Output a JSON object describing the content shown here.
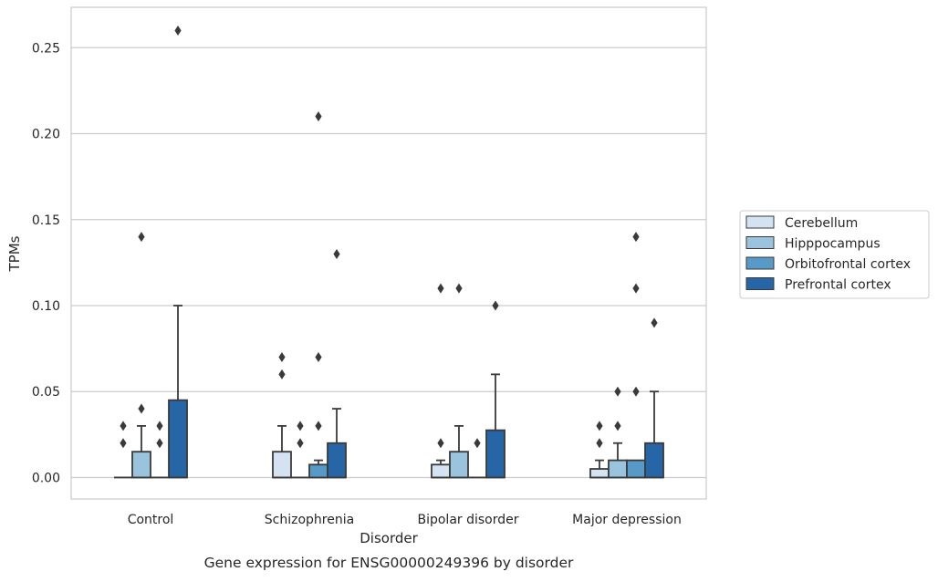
{
  "chart_data": {
    "type": "box",
    "title": "",
    "caption": "Gene expression for ENSG00000249396 by disorder",
    "xlabel": "Disorder",
    "ylabel": "TPMs",
    "ylim": [
      -0.0125,
      0.2735
    ],
    "yticks": [
      0.0,
      0.05,
      0.1,
      0.15,
      0.2,
      0.25
    ],
    "ytick_labels": [
      "0.00",
      "0.05",
      "0.10",
      "0.15",
      "0.20",
      "0.25"
    ],
    "grid": true,
    "legend_position": "outside-right",
    "categories": [
      "Control",
      "Schizophrenia",
      "Bipolar disorder",
      "Major depression"
    ],
    "series": [
      {
        "name": "Cerebellum",
        "color": "#d3e3f2",
        "boxes": [
          {
            "q1": 0.0,
            "median": 0.0,
            "q3": 0.0,
            "whisker_low": 0.0,
            "whisker_high": 0.0,
            "outliers": [
              0.02,
              0.03
            ]
          },
          {
            "q1": 0.0,
            "median": 0.0,
            "q3": 0.015,
            "whisker_low": 0.0,
            "whisker_high": 0.03,
            "outliers": [
              0.06,
              0.07
            ]
          },
          {
            "q1": 0.0,
            "median": 0.0,
            "q3": 0.0075,
            "whisker_low": 0.0,
            "whisker_high": 0.01,
            "outliers": [
              0.02,
              0.11
            ]
          },
          {
            "q1": 0.0,
            "median": 0.0,
            "q3": 0.005,
            "whisker_low": 0.0,
            "whisker_high": 0.01,
            "outliers": [
              0.02,
              0.03
            ]
          }
        ]
      },
      {
        "name": "Hipppocampus",
        "color": "#9ac3dd",
        "boxes": [
          {
            "q1": 0.0,
            "median": 0.0,
            "q3": 0.015,
            "whisker_low": 0.0,
            "whisker_high": 0.03,
            "outliers": [
              0.04,
              0.14
            ]
          },
          {
            "q1": 0.0,
            "median": 0.0,
            "q3": 0.0,
            "whisker_low": 0.0,
            "whisker_high": 0.0,
            "outliers": [
              0.02,
              0.03
            ]
          },
          {
            "q1": 0.0,
            "median": 0.0,
            "q3": 0.015,
            "whisker_low": 0.0,
            "whisker_high": 0.03,
            "outliers": [
              0.11
            ]
          },
          {
            "q1": 0.0,
            "median": 0.0,
            "q3": 0.01,
            "whisker_low": 0.0,
            "whisker_high": 0.02,
            "outliers": [
              0.03,
              0.05
            ]
          }
        ]
      },
      {
        "name": "Orbitofrontal cortex",
        "color": "#5799c7",
        "boxes": [
          {
            "q1": 0.0,
            "median": 0.0,
            "q3": 0.0,
            "whisker_low": 0.0,
            "whisker_high": 0.0,
            "outliers": [
              0.02,
              0.03
            ]
          },
          {
            "q1": 0.0,
            "median": 0.0,
            "q3": 0.0075,
            "whisker_low": 0.0,
            "whisker_high": 0.01,
            "outliers": [
              0.03,
              0.07,
              0.21
            ]
          },
          {
            "q1": 0.0,
            "median": 0.0,
            "q3": 0.0,
            "whisker_low": 0.0,
            "whisker_high": 0.0,
            "outliers": [
              0.02
            ]
          },
          {
            "q1": 0.0,
            "median": 0.0,
            "q3": 0.01,
            "whisker_low": 0.0,
            "whisker_high": 0.01,
            "outliers": [
              0.05,
              0.11,
              0.14
            ]
          }
        ]
      },
      {
        "name": "Prefrontal cortex",
        "color": "#2766a6",
        "boxes": [
          {
            "q1": 0.0,
            "median": 0.0,
            "q3": 0.045,
            "whisker_low": 0.0,
            "whisker_high": 0.1,
            "outliers": [
              0.26
            ]
          },
          {
            "q1": 0.0,
            "median": 0.0,
            "q3": 0.02,
            "whisker_low": 0.0,
            "whisker_high": 0.04,
            "outliers": [
              0.13
            ]
          },
          {
            "q1": 0.0,
            "median": 0.0,
            "q3": 0.0275,
            "whisker_low": 0.0,
            "whisker_high": 0.06,
            "outliers": [
              0.1
            ]
          },
          {
            "q1": 0.0,
            "median": 0.0,
            "q3": 0.02,
            "whisker_low": 0.0,
            "whisker_high": 0.05,
            "outliers": [
              0.09
            ]
          }
        ]
      }
    ]
  }
}
